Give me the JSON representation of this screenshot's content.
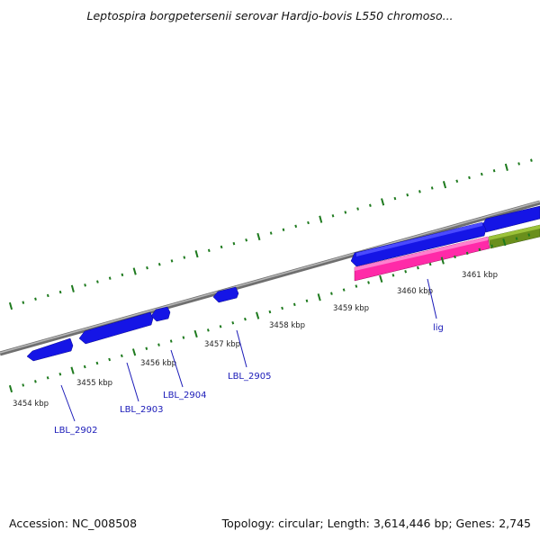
{
  "title": "Leptospira borgpetersenii serovar Hardjo-bovis L550 chromoso...",
  "footer": {
    "accession": "Accession: NC_008508",
    "summary": "Topology: circular; Length: 3,614,446 bp; Genes: 2,745"
  },
  "colors": {
    "backbone": "#8c8c8c",
    "forward_gene": "#1515e6",
    "reverse_gene": "#1515e6",
    "rna_gene": "#ff2aa8",
    "other_feature": "#6a8f1c",
    "tick_mark": "#1e7a1e",
    "gene_label": "#1a1ab8"
  },
  "kbp_labels": [
    "3454 kbp",
    "3455 kbp",
    "3456 kbp",
    "3457 kbp",
    "3458 kbp",
    "3459 kbp",
    "3460 kbp",
    "3461 kbp"
  ],
  "gene_labels": [
    "LBL_2902",
    "LBL_2903",
    "LBL_2904",
    "LBL_2905",
    "lig"
  ]
}
